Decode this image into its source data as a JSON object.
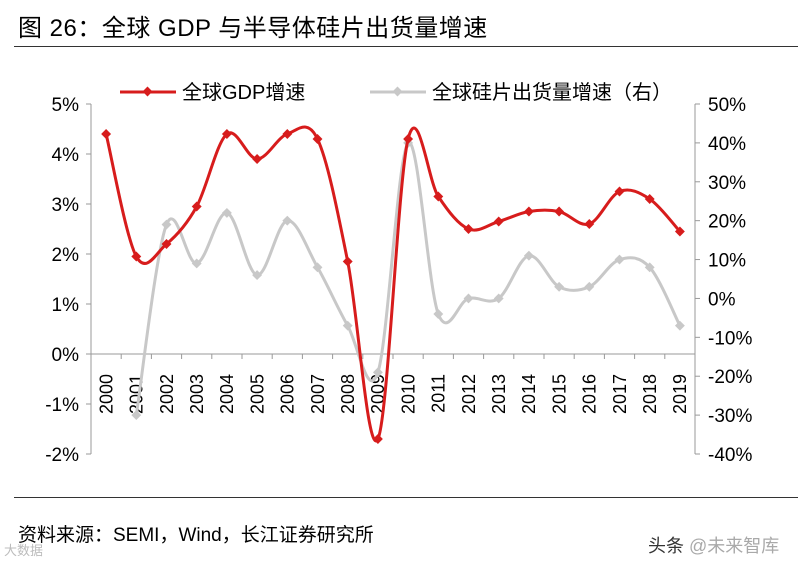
{
  "title": "图 26：全球 GDP 与半导体硅片出货量增速",
  "source": "资料来源：SEMI，Wind，长江证券研究所",
  "watermarks": {
    "left": "大数据",
    "right_prefix": "头条",
    "right_name": "@未来智库"
  },
  "chart_data": {
    "type": "line",
    "categories": [
      "2000",
      "2001",
      "2002",
      "2003",
      "2004",
      "2005",
      "2006",
      "2007",
      "2008",
      "2009",
      "2010",
      "2011",
      "2012",
      "2013",
      "2014",
      "2015",
      "2016",
      "2017",
      "2018",
      "2019"
    ],
    "series": [
      {
        "name": "全球GDP增速",
        "axis": "left",
        "color": "#d71c1c",
        "values": [
          4.4,
          1.95,
          2.2,
          2.95,
          4.4,
          3.9,
          4.4,
          4.3,
          1.85,
          -1.7,
          4.3,
          3.15,
          2.5,
          2.65,
          2.85,
          2.85,
          2.6,
          3.25,
          3.1,
          2.45
        ]
      },
      {
        "name": "全球硅片出货量增速（右）",
        "axis": "right",
        "color": "#c8c8c8",
        "values": [
          null,
          -30,
          19,
          9,
          22,
          6,
          20,
          8,
          -7,
          -19,
          40,
          -4,
          0,
          0,
          11,
          3,
          3,
          10,
          8,
          -7
        ]
      }
    ],
    "left_axis": {
      "ylim": [
        -2,
        5
      ],
      "ticks": [
        "-2%",
        "-1%",
        "0%",
        "1%",
        "2%",
        "3%",
        "4%",
        "5%"
      ]
    },
    "right_axis": {
      "ylim": [
        -40,
        50
      ],
      "ticks": [
        "-40%",
        "-30%",
        "-20%",
        "-10%",
        "0%",
        "10%",
        "20%",
        "30%",
        "40%",
        "50%"
      ]
    },
    "legend_position": "top"
  }
}
